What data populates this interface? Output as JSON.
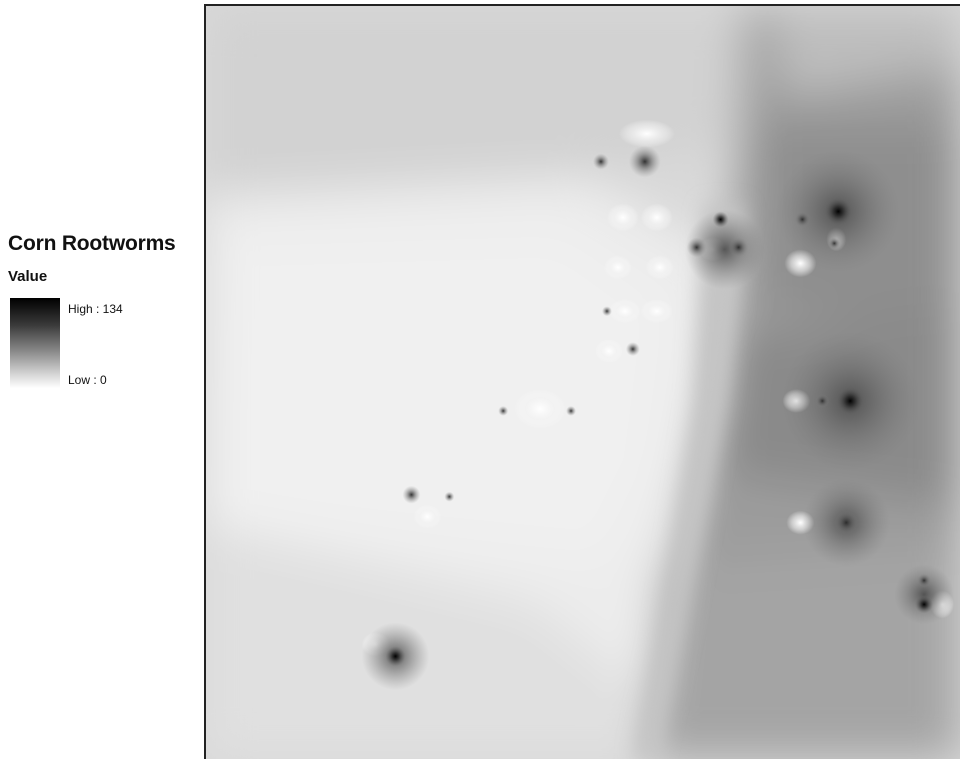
{
  "legend": {
    "title": "Corn Rootworms",
    "field": "Value",
    "high_label": "High : 134",
    "low_label": "Low : 0",
    "high_value": 134,
    "low_value": 0,
    "ramp_colors": [
      "#000000",
      "#ffffff"
    ]
  }
}
